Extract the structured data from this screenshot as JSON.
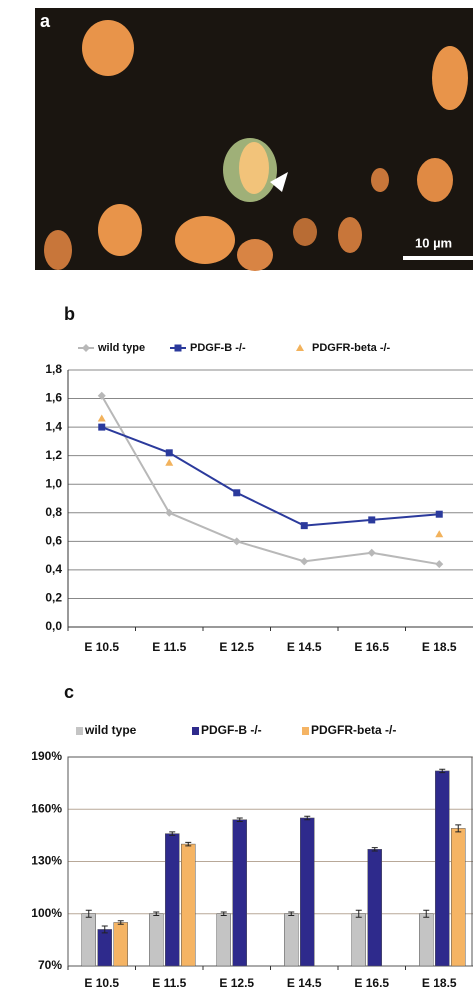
{
  "panel_a": {
    "panel_label": "a",
    "scale_bar": "10 µm"
  },
  "chart_data": [
    {
      "type": "line",
      "panel_label": "b",
      "categories": [
        "E 10.5",
        "E 11.5",
        "E 12.5",
        "E 14.5",
        "E 16.5",
        "E 18.5"
      ],
      "series": [
        {
          "name": "wild type",
          "color": "#b8b8b8",
          "marker": "diamond",
          "line": true,
          "values": [
            1.62,
            0.8,
            0.6,
            0.46,
            0.52,
            0.44
          ]
        },
        {
          "name": "PDGF-B -/-",
          "color": "#2b3a9c",
          "marker": "square",
          "line": true,
          "values": [
            1.4,
            1.22,
            0.94,
            0.71,
            0.75,
            0.79
          ]
        },
        {
          "name": "PDGFR-beta -/-",
          "color": "#f2b25c",
          "marker": "triangle",
          "line": false,
          "values": [
            1.46,
            1.15,
            null,
            null,
            null,
            0.65
          ]
        }
      ],
      "ylim": [
        0,
        1.8
      ],
      "yticks": [
        {
          "value": 0,
          "label": "0,0"
        },
        {
          "value": 0.2,
          "label": "0,2"
        },
        {
          "value": 0.4,
          "label": "0,4"
        },
        {
          "value": 0.6,
          "label": "0,6"
        },
        {
          "value": 0.8,
          "label": "0,8"
        },
        {
          "value": 1.0,
          "label": "1,0"
        },
        {
          "value": 1.2,
          "label": "1,2"
        },
        {
          "value": 1.4,
          "label": "1,4"
        },
        {
          "value": 1.6,
          "label": "1,6"
        },
        {
          "value": 1.8,
          "label": "1,8"
        }
      ],
      "grid": true
    },
    {
      "type": "bar",
      "panel_label": "c",
      "categories": [
        "E 10.5",
        "E 11.5",
        "E 12.5",
        "E 14.5",
        "E 16.5",
        "E 18.5"
      ],
      "series": [
        {
          "name": "wild type",
          "color": "#c4c4c4",
          "values": [
            100,
            100,
            100,
            100,
            100,
            100
          ],
          "errors": [
            2,
            1,
            1,
            1,
            2,
            2
          ]
        },
        {
          "name": "PDGF-B -/-",
          "color": "#2e2a8c",
          "values": [
            91,
            146,
            154,
            155,
            137,
            182
          ],
          "errors": [
            2,
            1,
            1,
            1,
            1,
            1
          ]
        },
        {
          "name": "PDGFR-beta -/-",
          "color": "#f5b464",
          "values": [
            95,
            140,
            null,
            null,
            null,
            149
          ],
          "errors": [
            1,
            1,
            null,
            null,
            null,
            2
          ]
        }
      ],
      "ylim": [
        70,
        190
      ],
      "yticks": [
        {
          "value": 70,
          "label": "70%"
        },
        {
          "value": 100,
          "label": "100%"
        },
        {
          "value": 130,
          "label": "130%"
        },
        {
          "value": 160,
          "label": "160%"
        },
        {
          "value": 190,
          "label": "190%"
        }
      ],
      "grid": true
    }
  ]
}
